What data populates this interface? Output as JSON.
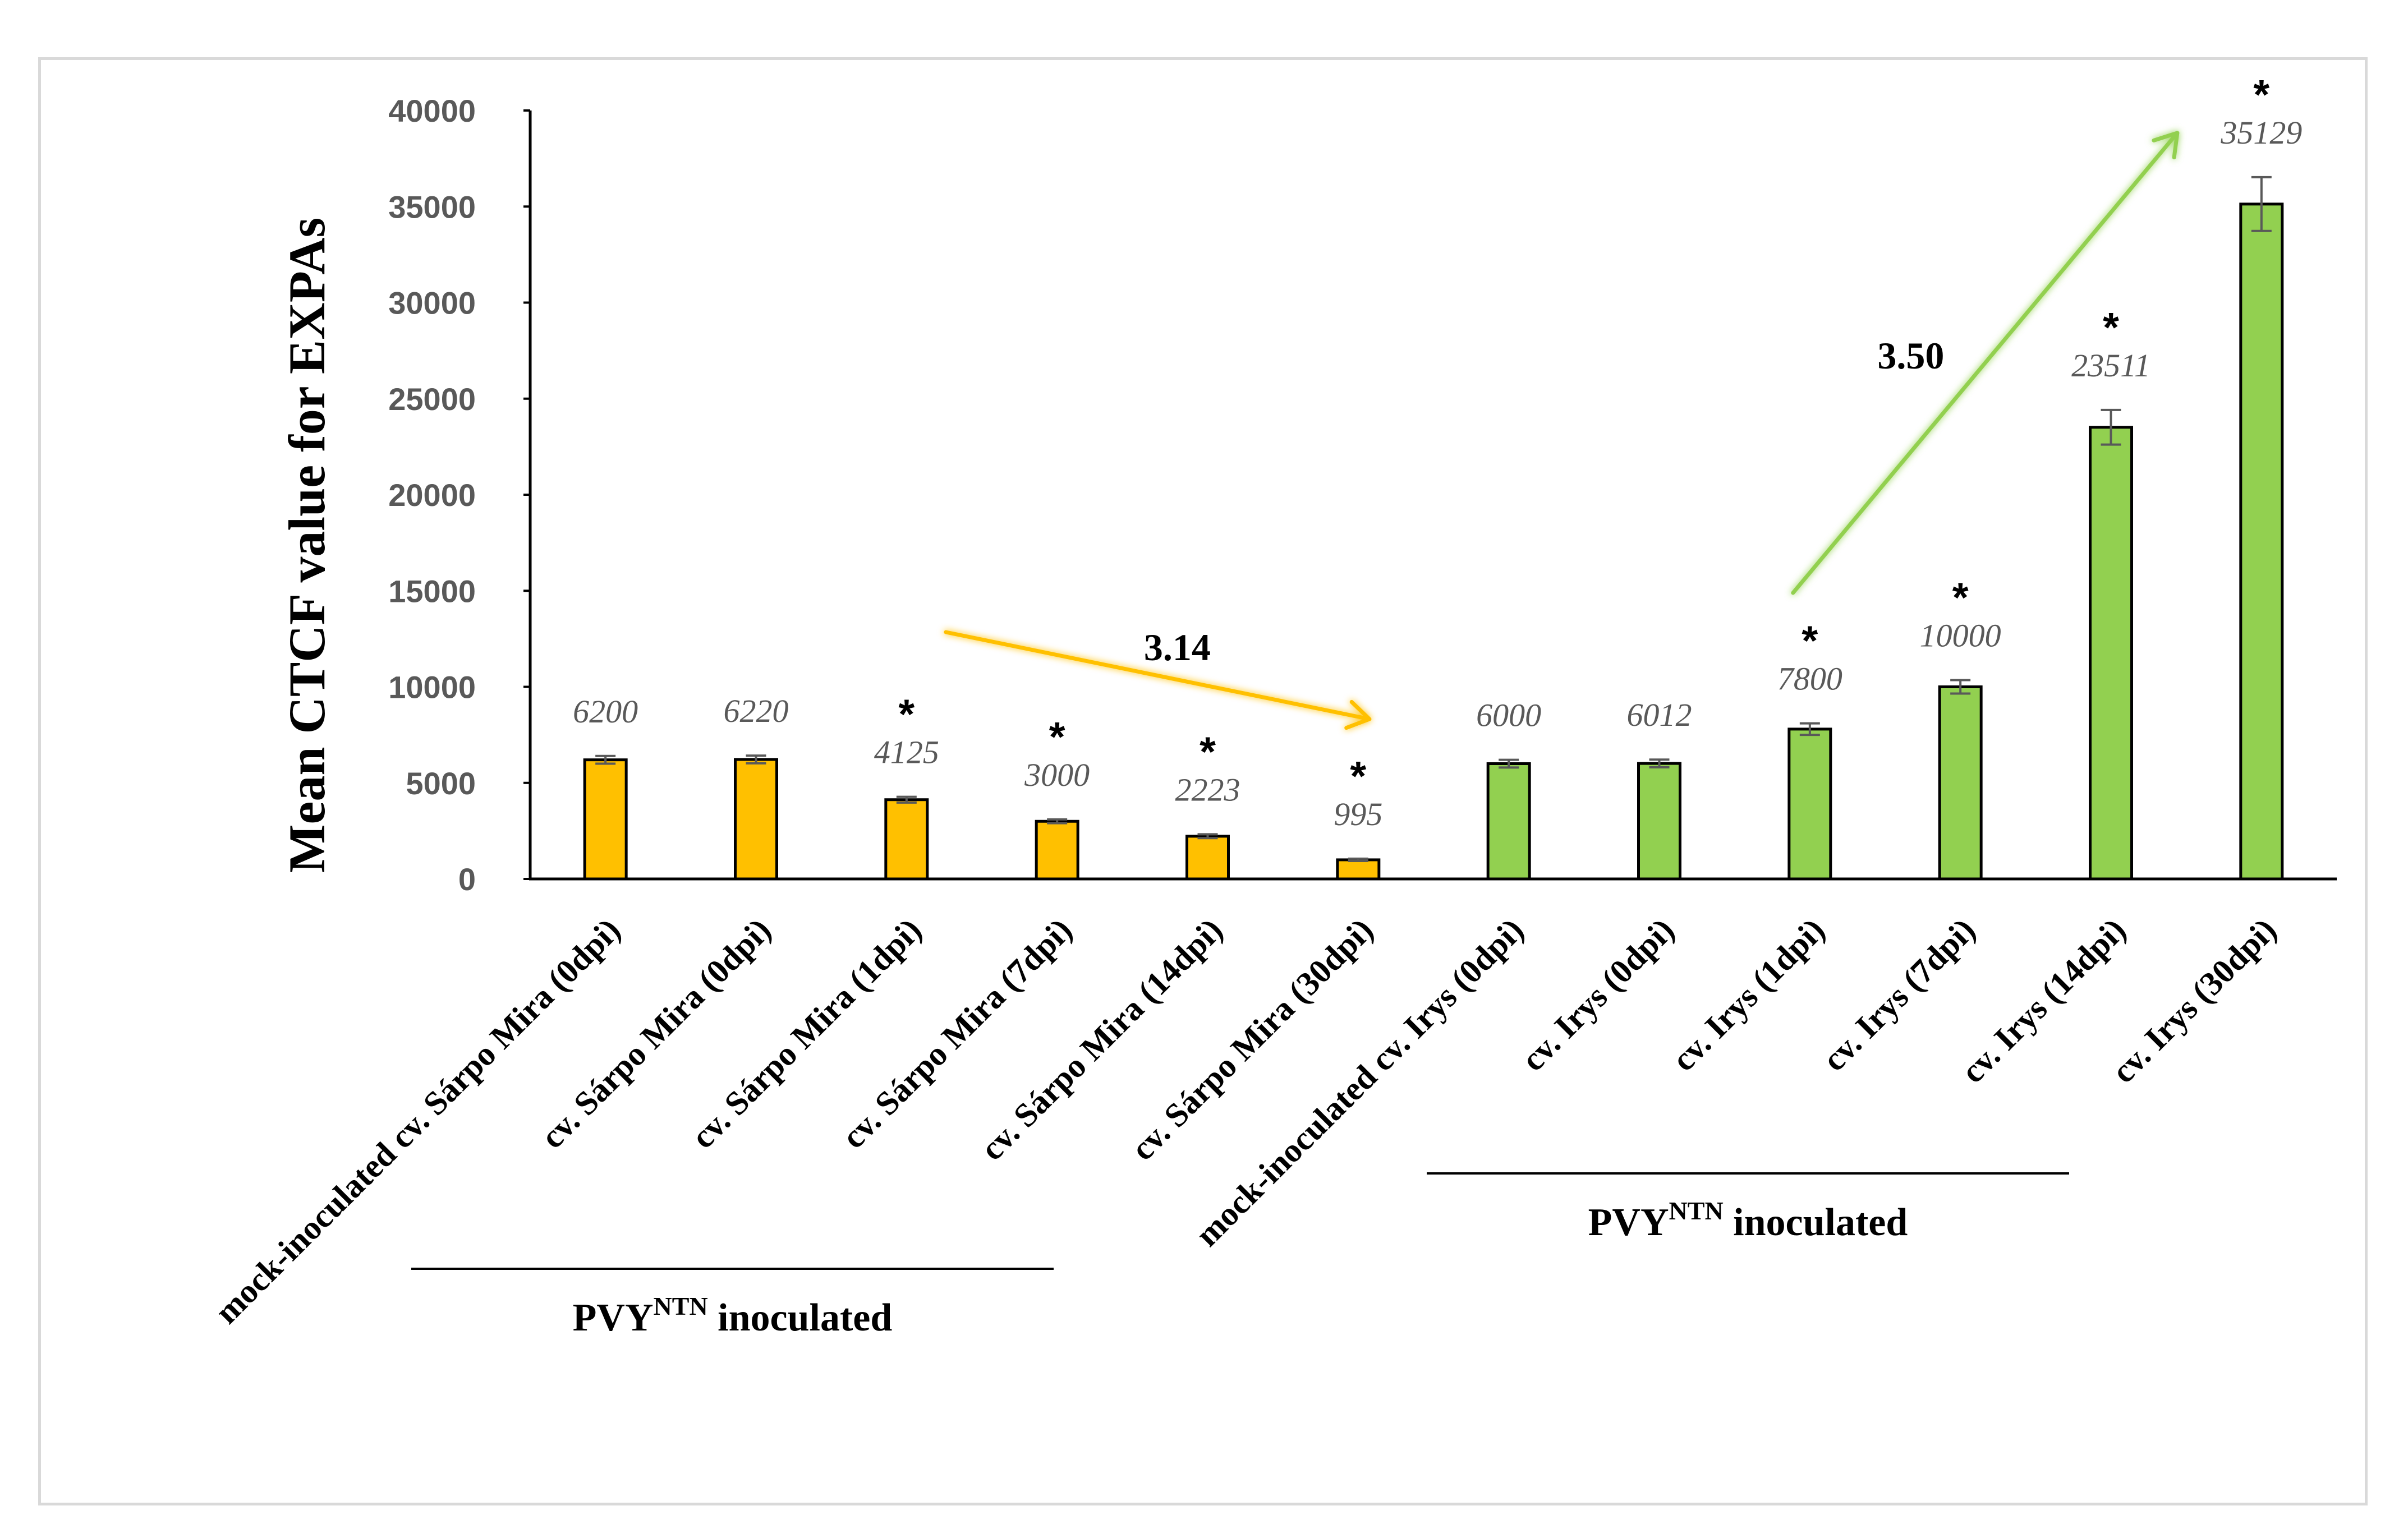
{
  "colors": {
    "susceptible": "#ffc000",
    "resistant": "#92d050",
    "ratio_arrow_susceptible": "#ffc000",
    "ratio_arrow_resistant": "#92d050",
    "error_bar": "#595959"
  },
  "chart_data": {
    "type": "bar",
    "title": "",
    "xlabel": "",
    "ylabel": "Mean CTCF value for EXPAs",
    "ylim": [
      0,
      40000
    ],
    "yticks": [
      "0",
      "5000",
      "10000",
      "15000",
      "20000",
      "25000",
      "30000",
      "35000",
      "40000"
    ],
    "ytick_values": [
      0,
      5000,
      10000,
      15000,
      20000,
      25000,
      30000,
      35000,
      40000
    ],
    "grid": false,
    "categories": [
      "mock-inoculated cv. Sárpo Mira (0dpi)",
      "cv. Sárpo Mira (0dpi)",
      "cv. Sárpo Mira (1dpi)",
      "cv. Sárpo Mira (7dpi)",
      "cv. Sárpo Mira (14dpi)",
      "cv. Sárpo Mira (30dpi)",
      "mock-inoculated cv. Irys (0dpi)",
      "cv. Irys (0dpi)",
      "cv. Irys (1dpi)",
      "cv. Irys (7dpi)",
      "cv. Irys (14dpi)",
      "cv. Irys (30dpi)"
    ],
    "values": [
      6200,
      6220,
      4125,
      3000,
      2223,
      995,
      6000,
      6012,
      7800,
      10000,
      23511,
      35129
    ],
    "value_labels": [
      "6200",
      "6220",
      "4125",
      "3000",
      "2223",
      "995",
      "6000",
      "6012",
      "7800",
      "10000",
      "23511",
      "35129"
    ],
    "errors": [
      200,
      200,
      150,
      100,
      100,
      60,
      200,
      200,
      300,
      350,
      900,
      1400
    ],
    "significant": [
      false,
      false,
      true,
      true,
      true,
      true,
      false,
      false,
      true,
      true,
      true,
      true
    ],
    "significance_marker": "*",
    "bar_groups": [
      "susceptible",
      "susceptible",
      "susceptible",
      "susceptible",
      "susceptible",
      "susceptible",
      "resistant",
      "resistant",
      "resistant",
      "resistant",
      "resistant",
      "resistant"
    ],
    "annotations": [
      {
        "text": "3.14",
        "group": "susceptible",
        "direction": "down"
      },
      {
        "text": "3.50",
        "group": "resistant",
        "direction": "up"
      }
    ],
    "group_brackets": [
      {
        "label_main": "PVY",
        "label_sup": "NTN",
        "label_tail": " inoculated",
        "from_index": 1,
        "to_index": 5
      },
      {
        "label_main": "PVY",
        "label_sup": "NTN",
        "label_tail": " inoculated",
        "from_index": 7,
        "to_index": 11
      }
    ]
  }
}
